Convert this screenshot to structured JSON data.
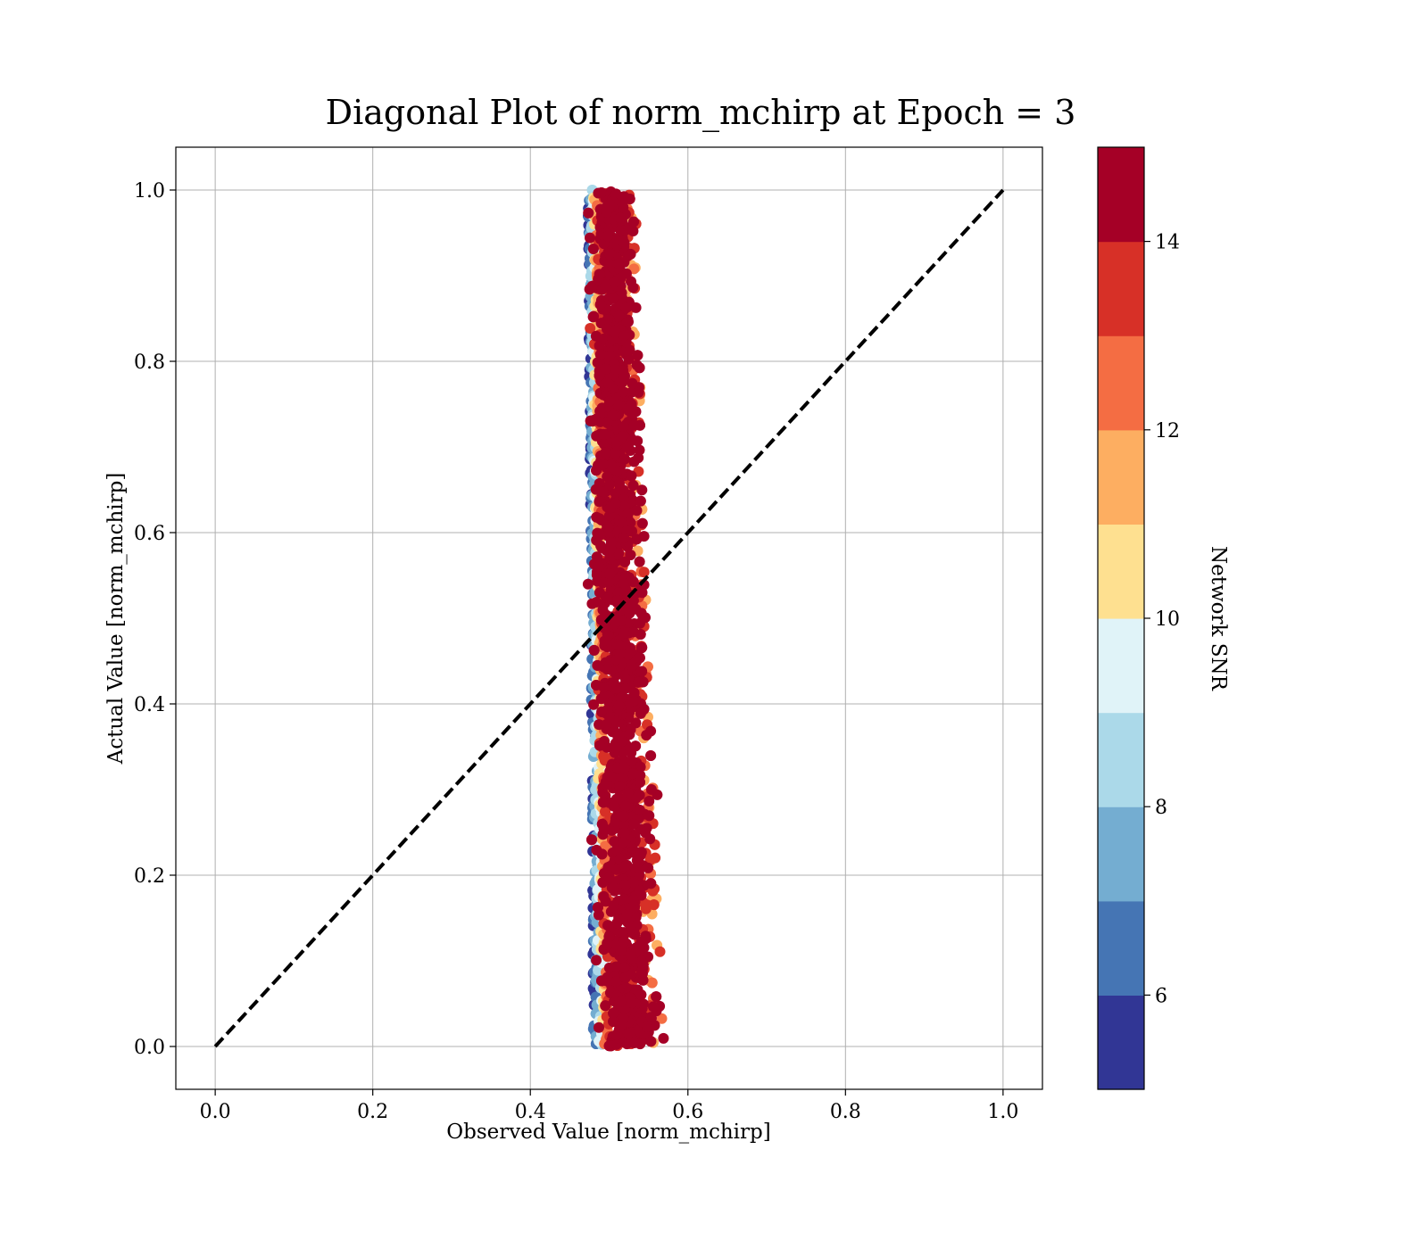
{
  "chart_data": {
    "type": "scatter",
    "title": "Diagonal Plot of norm_mchirp at Epoch = 3",
    "xlabel": "Observed Value [norm_mchirp]",
    "ylabel": "Actual Value [norm_mchirp]",
    "xlim": [
      -0.05,
      1.05
    ],
    "ylim": [
      -0.05,
      1.05
    ],
    "x_ticks": [
      0.0,
      0.2,
      0.4,
      0.6,
      0.8,
      1.0
    ],
    "y_ticks": [
      0.0,
      0.2,
      0.4,
      0.6,
      0.8,
      1.0
    ],
    "x_tick_labels": [
      "0.0",
      "0.2",
      "0.4",
      "0.6",
      "0.8",
      "1.0"
    ],
    "y_tick_labels": [
      "0.0",
      "0.2",
      "0.4",
      "0.6",
      "0.8",
      "1.0"
    ],
    "grid": true,
    "diagonal_line": {
      "from": [
        0.0,
        0.0
      ],
      "to": [
        1.0,
        1.0
      ],
      "style": "dashed",
      "color": "#000000"
    },
    "scatter_band": {
      "description_points": "vertical band of points",
      "center_x_at_y": [
        [
          0.0,
          0.525
        ],
        [
          0.5,
          0.512
        ],
        [
          1.0,
          0.503
        ]
      ],
      "half_width_at_y": [
        [
          0.0,
          0.045
        ],
        [
          0.5,
          0.035
        ],
        [
          1.0,
          0.03
        ]
      ],
      "y_range": [
        0.0,
        1.0
      ],
      "colors_by_offset": "low SNR on left edge, high SNR in core"
    },
    "colorbar": {
      "label": "Network SNR",
      "range": [
        5,
        15
      ],
      "ticks": [
        6,
        8,
        10,
        12,
        14
      ],
      "tick_labels": [
        "6",
        "8",
        "10",
        "12",
        "14"
      ],
      "colors": [
        "#313695",
        "#4575b4",
        "#74add1",
        "#abd9e9",
        "#e0f3f8",
        "#fee090",
        "#fdae61",
        "#f46d43",
        "#d73027",
        "#a50026"
      ]
    }
  }
}
